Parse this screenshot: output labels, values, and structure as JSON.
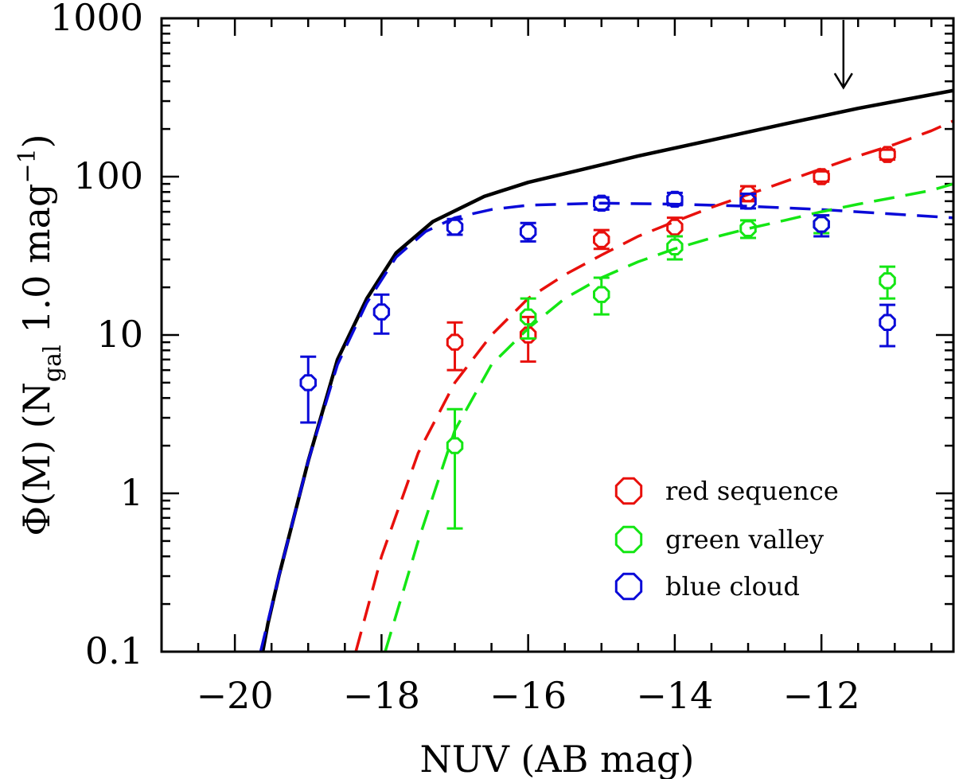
{
  "chart_data": {
    "type": "scatter",
    "title": "",
    "xlabel": "NUV (AB mag)",
    "ylabel_parts": {
      "prefix": "Φ(M)  (N",
      "sub": "gal",
      "mid": "  1.0 mag",
      "sup": "−1",
      "suffix": ")"
    },
    "xlim": [
      -21,
      -10.2
    ],
    "ylim": [
      0.1,
      1000
    ],
    "yscale": "log",
    "x_ticks": [
      -20,
      -18,
      -16,
      -14,
      -12
    ],
    "x_tick_labels": [
      "−20",
      "−18",
      "−16",
      "−14",
      "−12"
    ],
    "y_ticks": [
      0.1,
      1,
      10,
      100,
      1000
    ],
    "y_tick_labels": [
      "0.1",
      "1",
      "10",
      "100",
      "1000"
    ],
    "colors": {
      "red": "#e8100c",
      "green": "#14e614",
      "blue": "#0a0ad8",
      "black": "#000000"
    },
    "series": [
      {
        "name": "red sequence",
        "color": "#e8100c",
        "x": [
          -17,
          -16,
          -15,
          -14,
          -13,
          -12,
          -11.1
        ],
        "y": [
          9,
          10,
          40,
          48,
          78,
          100,
          138
        ],
        "ylo": [
          6,
          6.8,
          35,
          42,
          70,
          93,
          128
        ],
        "yhi": [
          12,
          13,
          46,
          55,
          87,
          108,
          148
        ]
      },
      {
        "name": "green valley",
        "color": "#14e614",
        "x": [
          -17,
          -16,
          -15,
          -14,
          -13,
          -12,
          -11.1
        ],
        "y": [
          2,
          13,
          18,
          36,
          47,
          50,
          22
        ],
        "ylo": [
          0.6,
          9.5,
          13.5,
          30,
          41,
          44,
          17
        ],
        "yhi": [
          3.4,
          17,
          23,
          42,
          53,
          57,
          27
        ]
      },
      {
        "name": "blue cloud",
        "color": "#0a0ad8",
        "x": [
          -19,
          -18,
          -17,
          -16,
          -15,
          -14,
          -13,
          -12,
          -11.1
        ],
        "y": [
          5,
          14,
          48,
          45,
          68,
          72,
          70,
          50,
          12
        ],
        "ylo": [
          2.8,
          10.2,
          43,
          39,
          62,
          66,
          63,
          42,
          8.5
        ],
        "yhi": [
          7.3,
          18,
          54,
          51,
          74,
          79,
          78,
          57,
          15.5
        ]
      }
    ],
    "curves": [
      {
        "name": "total",
        "color": "#000000",
        "style": "solid",
        "x": [
          -19.62,
          -19.55,
          -19.4,
          -19.0,
          -18.6,
          -18.2,
          -17.8,
          -17.3,
          -16.6,
          -16.0,
          -15.3,
          -14.5,
          -13.5,
          -12.5,
          -11.5,
          -10.2
        ],
        "y": [
          0.1,
          0.15,
          0.3,
          1.6,
          7,
          17,
          33,
          52,
          75,
          92,
          110,
          135,
          170,
          215,
          270,
          350
        ]
      },
      {
        "name": "blue cloud fit",
        "color": "#0a0ad8",
        "style": "dashed",
        "x": [
          -19.65,
          -19.4,
          -19.0,
          -18.6,
          -18.2,
          -17.8,
          -17.4,
          -17.0,
          -16.5,
          -16.0,
          -15.0,
          -14.0,
          -13.0,
          -12.0,
          -11.0,
          -10.2
        ],
        "y": [
          0.1,
          0.3,
          1.6,
          6.5,
          16,
          31,
          45,
          55,
          62,
          66,
          68,
          67,
          65,
          62,
          58,
          55
        ]
      },
      {
        "name": "red sequence fit",
        "color": "#e8100c",
        "style": "dashed",
        "x": [
          -18.35,
          -18.0,
          -17.5,
          -17.0,
          -16.5,
          -16.0,
          -15.5,
          -15.0,
          -14.5,
          -14.0,
          -13.5,
          -13.0,
          -12.5,
          -12.0,
          -11.5,
          -11.0,
          -10.5,
          -10.2
        ],
        "y": [
          0.1,
          0.4,
          1.8,
          5.0,
          10,
          17,
          24,
          32,
          42,
          52,
          64,
          77,
          93,
          112,
          135,
          160,
          195,
          225
        ]
      },
      {
        "name": "green valley fit",
        "color": "#14e614",
        "style": "dashed",
        "x": [
          -17.95,
          -17.5,
          -17.0,
          -16.5,
          -16.0,
          -15.5,
          -15.0,
          -14.5,
          -14.0,
          -13.5,
          -13.0,
          -12.5,
          -12.0,
          -11.5,
          -11.0,
          -10.5,
          -10.2
        ],
        "y": [
          0.1,
          0.5,
          2.5,
          6.5,
          11,
          17,
          23,
          29,
          35,
          41,
          47,
          53,
          60,
          67,
          74,
          82,
          90
        ]
      }
    ],
    "annotations": [
      {
        "type": "arrow",
        "x": -11.7,
        "y_from": 1000,
        "y_to": 400,
        "direction": "down"
      }
    ],
    "legend": {
      "position": "lower-right",
      "entries": [
        "red sequence",
        "green valley",
        "blue cloud"
      ]
    }
  }
}
